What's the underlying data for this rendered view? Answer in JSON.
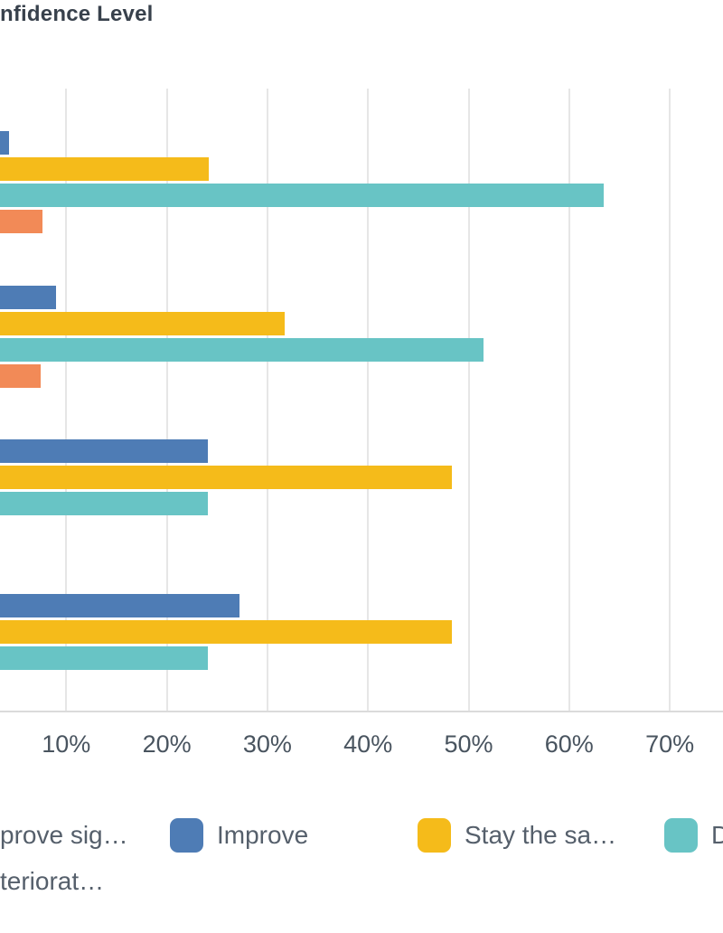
{
  "title": "nfidence Level",
  "colors": {
    "improve_bar": "#4E7CB5",
    "stay_the_same_bar": "#F5BB1A",
    "deteriorate_bar": "#68C4C5",
    "deteriorate_sig_bar": "#F28A57",
    "gridline": "#E6E6E6",
    "axis_line": "#DBDBDB",
    "title_text": "#38414C",
    "axis_text": "#49545F",
    "legend_text": "#555F6B"
  },
  "chart_data": {
    "type": "bar",
    "orientation": "horizontal",
    "grouped": true,
    "title": "nfidence Level",
    "categories": [
      "",
      "",
      "",
      ""
    ],
    "series": [
      {
        "name": "Improve",
        "color": "#4E7CB5",
        "values": [
          4.3,
          9.0,
          24.1,
          27.2
        ]
      },
      {
        "name": "Stay the sa…",
        "color": "#F5BB1A",
        "values": [
          24.2,
          31.7,
          48.3,
          48.3
        ]
      },
      {
        "name": "D",
        "color": "#68C4C5",
        "values": [
          63.4,
          51.5,
          24.1,
          24.1
        ]
      },
      {
        "name": "teriorat…",
        "color": "#F28A57",
        "values": [
          7.6,
          7.5,
          null,
          null
        ]
      }
    ],
    "x_axis": {
      "unit": "%",
      "tick_values": [
        10,
        20,
        30,
        40,
        50,
        60,
        70
      ],
      "tick_labels": [
        "10%",
        "20%",
        "30%",
        "40%",
        "50%",
        "60%",
        "70%"
      ],
      "grid": true,
      "visible_range_note": "chart cropped at left edge; 0% origin and category labels are cut off"
    },
    "legend_position": "bottom"
  },
  "legend": {
    "rows": [
      [
        {
          "label": "prove sig…",
          "swatch_color": null
        },
        {
          "label": "Improve",
          "swatch_color": "#4E7CB5"
        },
        {
          "label": "Stay the sa…",
          "swatch_color": "#F5BB1A"
        },
        {
          "label": "D",
          "swatch_color": "#68C4C5"
        }
      ],
      [
        {
          "label": "teriorat…",
          "swatch_color": null
        }
      ]
    ]
  }
}
